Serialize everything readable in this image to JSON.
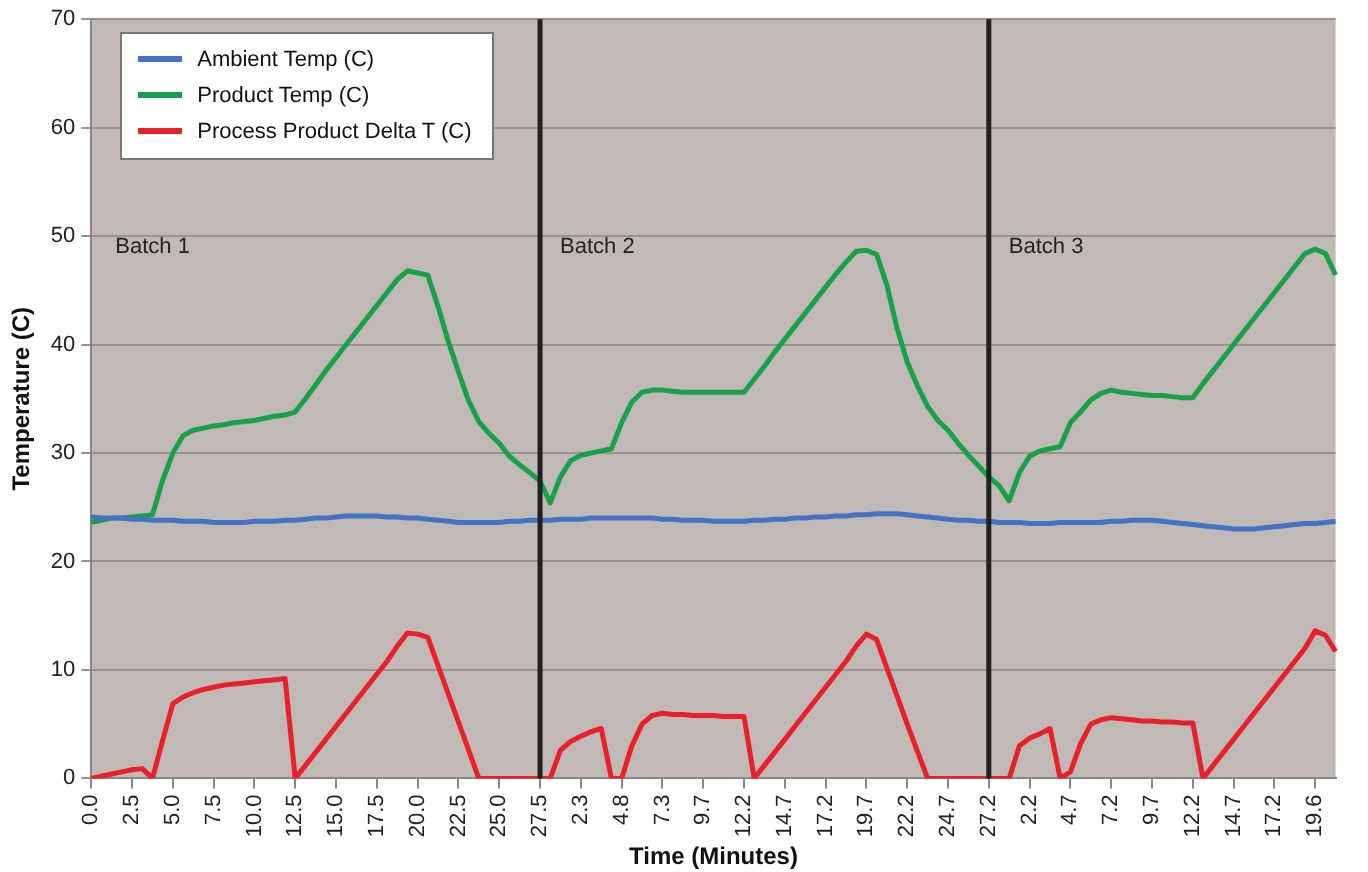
{
  "chart_data": {
    "type": "line",
    "xlabel": "Time (Minutes)",
    "ylabel": "Temperature (C)",
    "categories": [
      "0.0",
      null,
      null,
      null,
      "2.5",
      null,
      null,
      null,
      "5.0",
      null,
      null,
      null,
      "7.5",
      null,
      null,
      null,
      "10.0",
      null,
      null,
      null,
      "12.5",
      null,
      null,
      null,
      "15.0",
      null,
      null,
      null,
      "17.5",
      null,
      null,
      null,
      "20.0",
      null,
      null,
      null,
      "22.5",
      null,
      null,
      null,
      "25.0",
      null,
      null,
      null,
      "27.5",
      null,
      null,
      null,
      "2.3",
      null,
      null,
      null,
      "4.8",
      null,
      null,
      null,
      "7.3",
      null,
      null,
      null,
      "9.7",
      null,
      null,
      null,
      "12.2",
      null,
      null,
      null,
      "14.7",
      null,
      null,
      null,
      "17.2",
      null,
      null,
      null,
      "19.7",
      null,
      null,
      null,
      "22.2",
      null,
      null,
      null,
      "24.7",
      null,
      null,
      null,
      "27.2",
      null,
      null,
      null,
      "2.2",
      null,
      null,
      null,
      "4.7",
      null,
      null,
      null,
      "7.2",
      null,
      null,
      null,
      "9.7",
      null,
      null,
      null,
      "12.2",
      null,
      null,
      null,
      "14.7",
      null,
      null,
      null,
      "17.2",
      null,
      null,
      null,
      "19.6",
      null,
      null
    ],
    "series": [
      {
        "name": "Ambient Temp (C)",
        "color": "#4472c4",
        "values": [
          24.1,
          24.0,
          24.0,
          24.0,
          23.9,
          23.9,
          23.8,
          23.8,
          23.8,
          23.7,
          23.7,
          23.7,
          23.6,
          23.6,
          23.6,
          23.6,
          23.7,
          23.7,
          23.7,
          23.8,
          23.8,
          23.9,
          24.0,
          24.0,
          24.1,
          24.2,
          24.2,
          24.2,
          24.2,
          24.1,
          24.1,
          24.0,
          24.0,
          23.9,
          23.8,
          23.7,
          23.6,
          23.6,
          23.6,
          23.6,
          23.6,
          23.7,
          23.7,
          23.8,
          23.8,
          23.8,
          23.9,
          23.9,
          23.9,
          24.0,
          24.0,
          24.0,
          24.0,
          24.0,
          24.0,
          24.0,
          23.9,
          23.9,
          23.8,
          23.8,
          23.8,
          23.7,
          23.7,
          23.7,
          23.7,
          23.8,
          23.8,
          23.9,
          23.9,
          24.0,
          24.0,
          24.1,
          24.1,
          24.2,
          24.2,
          24.3,
          24.3,
          24.4,
          24.4,
          24.4,
          24.3,
          24.2,
          24.1,
          24.0,
          23.9,
          23.8,
          23.8,
          23.7,
          23.7,
          23.6,
          23.6,
          23.6,
          23.5,
          23.5,
          23.5,
          23.6,
          23.6,
          23.6,
          23.6,
          23.6,
          23.7,
          23.7,
          23.8,
          23.8,
          23.8,
          23.7,
          23.6,
          23.5,
          23.4,
          23.3,
          23.2,
          23.1,
          23.0,
          23.0,
          23.0,
          23.1,
          23.2,
          23.3,
          23.4,
          23.5,
          23.5,
          23.6,
          23.7
        ]
      },
      {
        "name": "Product Temp (C)",
        "color": "#18a04a",
        "values": [
          23.6,
          23.8,
          24.0,
          24.0,
          24.1,
          24.2,
          24.3,
          27.5,
          30.0,
          31.6,
          32.1,
          32.3,
          32.5,
          32.6,
          32.8,
          32.9,
          33.0,
          33.2,
          33.4,
          33.5,
          33.8,
          35.0,
          36.3,
          37.6,
          38.8,
          40.0,
          41.2,
          42.4,
          43.6,
          44.8,
          46.0,
          46.8,
          46.6,
          46.4,
          43.5,
          40.3,
          37.5,
          34.8,
          32.9,
          31.8,
          30.9,
          29.7,
          28.9,
          28.2,
          27.4,
          25.4,
          27.8,
          29.3,
          29.8,
          30.0,
          30.2,
          30.4,
          32.8,
          34.7,
          35.6,
          35.8,
          35.8,
          35.7,
          35.6,
          35.6,
          35.6,
          35.6,
          35.6,
          35.6,
          35.6,
          36.8,
          38.0,
          39.3,
          40.5,
          41.7,
          42.9,
          44.1,
          45.3,
          46.5,
          47.6,
          48.6,
          48.7,
          48.3,
          45.5,
          41.5,
          38.4,
          36.2,
          34.3,
          33.0,
          32.1,
          30.9,
          29.8,
          28.8,
          27.8,
          27.0,
          25.6,
          28.2,
          29.7,
          30.2,
          30.4,
          30.6,
          32.8,
          33.8,
          34.9,
          35.5,
          35.8,
          35.6,
          35.5,
          35.4,
          35.3,
          35.3,
          35.2,
          35.1,
          35.1,
          36.4,
          37.6,
          38.8,
          40.0,
          41.2,
          42.4,
          43.6,
          44.8,
          46.0,
          47.2,
          48.4,
          48.8,
          48.4,
          46.4
        ]
      },
      {
        "name": "Process Product Delta T (C)",
        "color": "#e8202a",
        "values": [
          0,
          0.2,
          0.4,
          0.6,
          0.8,
          0.9,
          0,
          3.5,
          6.9,
          7.5,
          7.9,
          8.2,
          8.4,
          8.6,
          8.7,
          8.8,
          8.9,
          9.0,
          9.1,
          9.2,
          0,
          1.2,
          2.4,
          3.6,
          4.8,
          6.0,
          7.2,
          8.4,
          9.6,
          10.8,
          12.2,
          13.4,
          13.3,
          13.0,
          10.4,
          7.8,
          5.2,
          2.6,
          0,
          0,
          0,
          0,
          0,
          0,
          0,
          0,
          2.6,
          3.4,
          3.9,
          4.3,
          4.6,
          0,
          0,
          3.0,
          5.0,
          5.8,
          6.0,
          5.9,
          5.9,
          5.8,
          5.8,
          5.8,
          5.7,
          5.7,
          5.7,
          0,
          1.2,
          2.4,
          3.6,
          4.8,
          6.0,
          7.2,
          8.4,
          9.6,
          10.8,
          12.2,
          13.3,
          12.8,
          10.2,
          7.6,
          5.0,
          2.5,
          0,
          0,
          0,
          0,
          0,
          0,
          0,
          0,
          0,
          3.0,
          3.7,
          4.1,
          4.6,
          0,
          0.6,
          3.2,
          5.0,
          5.4,
          5.6,
          5.5,
          5.4,
          5.3,
          5.3,
          5.2,
          5.2,
          5.1,
          5.1,
          0,
          1.2,
          2.4,
          3.6,
          4.8,
          6.0,
          7.2,
          8.4,
          9.6,
          10.8,
          12.0,
          13.6,
          13.2,
          11.7
        ]
      }
    ],
    "ylim": [
      0,
      70
    ],
    "yticks": [
      0,
      10,
      20,
      30,
      40,
      50,
      60,
      70
    ],
    "grid": "y",
    "legend": "top left",
    "marker": "none",
    "line_style": "solid",
    "ref_lines": [
      {
        "axis": "x",
        "value": "27.5",
        "label": "Batch 2",
        "color": "#202020"
      },
      {
        "axis": "x",
        "value": "27.2",
        "label": "Batch 3",
        "color": "#202020"
      }
    ],
    "annotations": [
      "Batch 1"
    ]
  }
}
